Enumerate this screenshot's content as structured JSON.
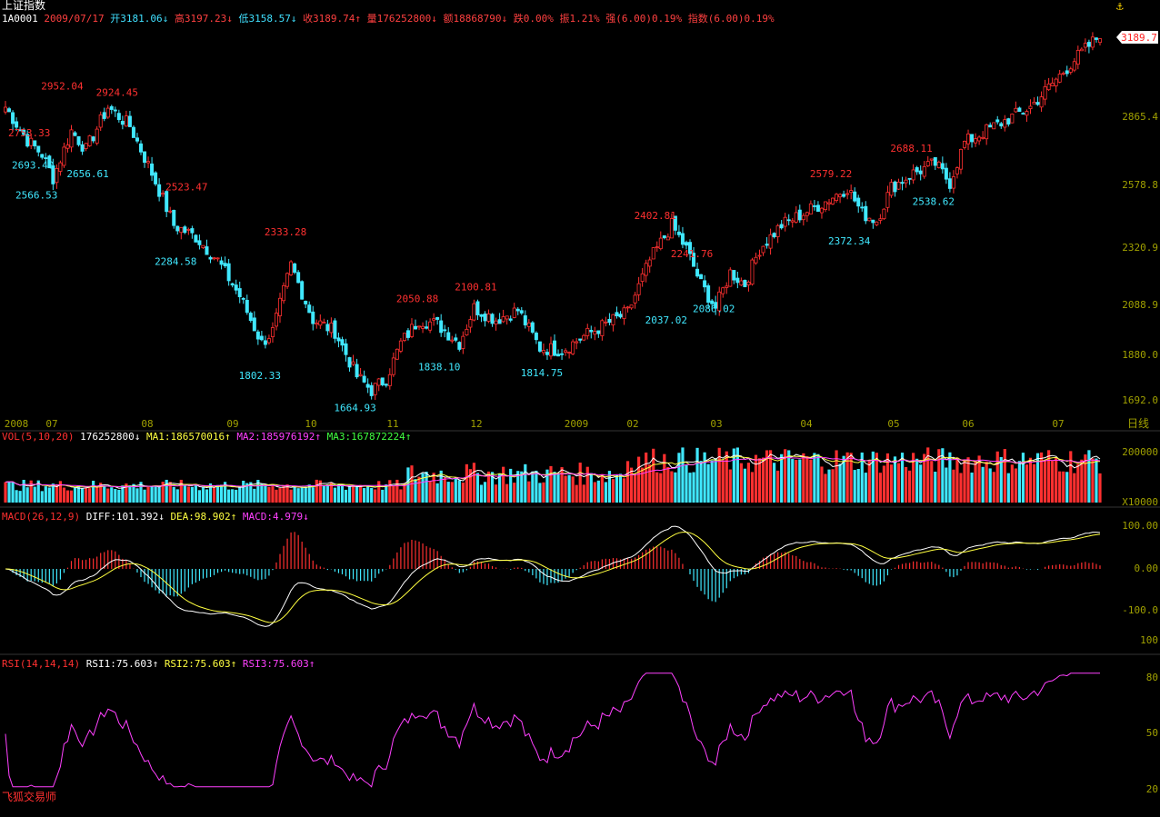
{
  "header": {
    "title": "上证指数",
    "code": "1A0001",
    "date": "2009/07/17",
    "open": "开3181.06↓",
    "high": "高3197.23↓",
    "low": "低3158.57↓",
    "close": "收3189.74↑",
    "volume": "量176252800↓",
    "amount": "额18868790↓",
    "change": "跌0.00%",
    "amplitude": "振1.21%",
    "strength": "强(6.00)0.19%",
    "index": "指数(6.00)0.19%"
  },
  "last_price_tag": "3189.7",
  "period_label": "日线",
  "brand": "飞狐交易师",
  "colors": {
    "up": "#ff3030",
    "down": "#40e8ff",
    "bg": "#000000",
    "axis": "#a0a000",
    "ma1": "#ffffff",
    "ma2": "#ffff40",
    "ma3": "#ff40ff",
    "ma4": "#40ff40"
  },
  "chart_data": [
    {
      "type": "candlestick",
      "name": "price",
      "ylim": [
        1692.0,
        3189.7
      ],
      "y_ticks": [
        1692.0,
        1880.0,
        2088.9,
        2320.9,
        2578.8,
        2865.4,
        3189.7
      ],
      "x_ticks": [
        "2008",
        "07",
        "08",
        "09",
        "10",
        "11",
        "12",
        "2009",
        "02",
        "03",
        "04",
        "05",
        "06",
        "07"
      ],
      "annotations": [
        {
          "label": "2952.04",
          "value": 2952.04,
          "kind": "high"
        },
        {
          "label": "2924.45",
          "value": 2924.45,
          "kind": "high"
        },
        {
          "label": "2753.33",
          "value": 2753.33,
          "kind": "high"
        },
        {
          "label": "2693.40",
          "value": 2693.4,
          "kind": "low"
        },
        {
          "label": "2566.53",
          "value": 2566.53,
          "kind": "low"
        },
        {
          "label": "2656.61",
          "value": 2656.61,
          "kind": "low"
        },
        {
          "label": "2523.47",
          "value": 2523.47,
          "kind": "high"
        },
        {
          "label": "2284.58",
          "value": 2284.58,
          "kind": "low"
        },
        {
          "label": "2333.28",
          "value": 2333.28,
          "kind": "high"
        },
        {
          "label": "1802.33",
          "value": 1802.33,
          "kind": "low"
        },
        {
          "label": "1664.93",
          "value": 1664.93,
          "kind": "low"
        },
        {
          "label": "2050.88",
          "value": 2050.88,
          "kind": "high"
        },
        {
          "label": "2100.81",
          "value": 2100.81,
          "kind": "high"
        },
        {
          "label": "1838.10",
          "value": 1838.1,
          "kind": "low"
        },
        {
          "label": "1814.75",
          "value": 1814.75,
          "kind": "low"
        },
        {
          "label": "2402.81",
          "value": 2402.81,
          "kind": "high"
        },
        {
          "label": "2241.76",
          "value": 2241.76,
          "kind": "high"
        },
        {
          "label": "2037.02",
          "value": 2037.02,
          "kind": "low"
        },
        {
          "label": "2086.02",
          "value": 2086.02,
          "kind": "low"
        },
        {
          "label": "2579.22",
          "value": 2579.22,
          "kind": "high"
        },
        {
          "label": "2372.34",
          "value": 2372.34,
          "kind": "low"
        },
        {
          "label": "2688.11",
          "value": 2688.11,
          "kind": "high"
        },
        {
          "label": "2538.62",
          "value": 2538.62,
          "kind": "low"
        }
      ],
      "anchors": [
        [
          0,
          2900
        ],
        [
          6,
          2760
        ],
        [
          10,
          2700
        ],
        [
          13,
          2600
        ],
        [
          18,
          2800
        ],
        [
          22,
          2720
        ],
        [
          28,
          2900
        ],
        [
          34,
          2820
        ],
        [
          40,
          2620
        ],
        [
          46,
          2400
        ],
        [
          52,
          2350
        ],
        [
          58,
          2250
        ],
        [
          64,
          2100
        ],
        [
          70,
          1900
        ],
        [
          73,
          1950
        ],
        [
          78,
          2230
        ],
        [
          84,
          2000
        ],
        [
          90,
          1950
        ],
        [
          96,
          1760
        ],
        [
          100,
          1700
        ],
        [
          104,
          1750
        ],
        [
          108,
          1900
        ],
        [
          113,
          2000
        ],
        [
          118,
          1980
        ],
        [
          124,
          1900
        ],
        [
          128,
          2050
        ],
        [
          134,
          2000
        ],
        [
          140,
          2040
        ],
        [
          146,
          1880
        ],
        [
          152,
          1870
        ],
        [
          158,
          1930
        ],
        [
          164,
          1980
        ],
        [
          170,
          2030
        ],
        [
          176,
          2250
        ],
        [
          182,
          2400
        ],
        [
          186,
          2300
        ],
        [
          190,
          2150
        ],
        [
          194,
          2050
        ],
        [
          198,
          2200
        ],
        [
          202,
          2150
        ],
        [
          206,
          2300
        ],
        [
          212,
          2400
        ],
        [
          218,
          2450
        ],
        [
          224,
          2500
        ],
        [
          230,
          2560
        ],
        [
          234,
          2450
        ],
        [
          238,
          2420
        ],
        [
          242,
          2560
        ],
        [
          248,
          2620
        ],
        [
          254,
          2660
        ],
        [
          258,
          2580
        ],
        [
          262,
          2750
        ],
        [
          268,
          2800
        ],
        [
          274,
          2850
        ],
        [
          280,
          2900
        ],
        [
          286,
          3000
        ],
        [
          292,
          3100
        ],
        [
          298,
          3189.7
        ]
      ]
    },
    {
      "type": "bar",
      "name": "VOL(5,10,20)",
      "label": "VOL(5,10,20)",
      "value_label": "176252800↓",
      "ma_labels": [
        "MA1:186570016↑",
        "MA2:185976192↑",
        "MA3:167872224↑"
      ],
      "ylim": [
        0,
        200000
      ],
      "y_ticks": [
        200000
      ],
      "unit_label": "X10000"
    },
    {
      "type": "line",
      "name": "MACD(26,12,9)",
      "label": "MACD(26,12,9)",
      "values_text": [
        "DIFF:101.392↓",
        "DEA:98.902↑",
        "MACD:4.979↓"
      ],
      "ylim": [
        -100,
        100
      ],
      "y_ticks": [
        100.0,
        0.0,
        -100.0
      ]
    },
    {
      "type": "line",
      "name": "RSI(14,14,14)",
      "label": "RSI(14,14,14)",
      "values_text": [
        "RSI1:75.603↑",
        "RSI2:75.603↑",
        "RSI3:75.603↑"
      ],
      "ylim": [
        20,
        100
      ],
      "y_ticks": [
        100,
        80,
        50,
        20
      ]
    }
  ]
}
